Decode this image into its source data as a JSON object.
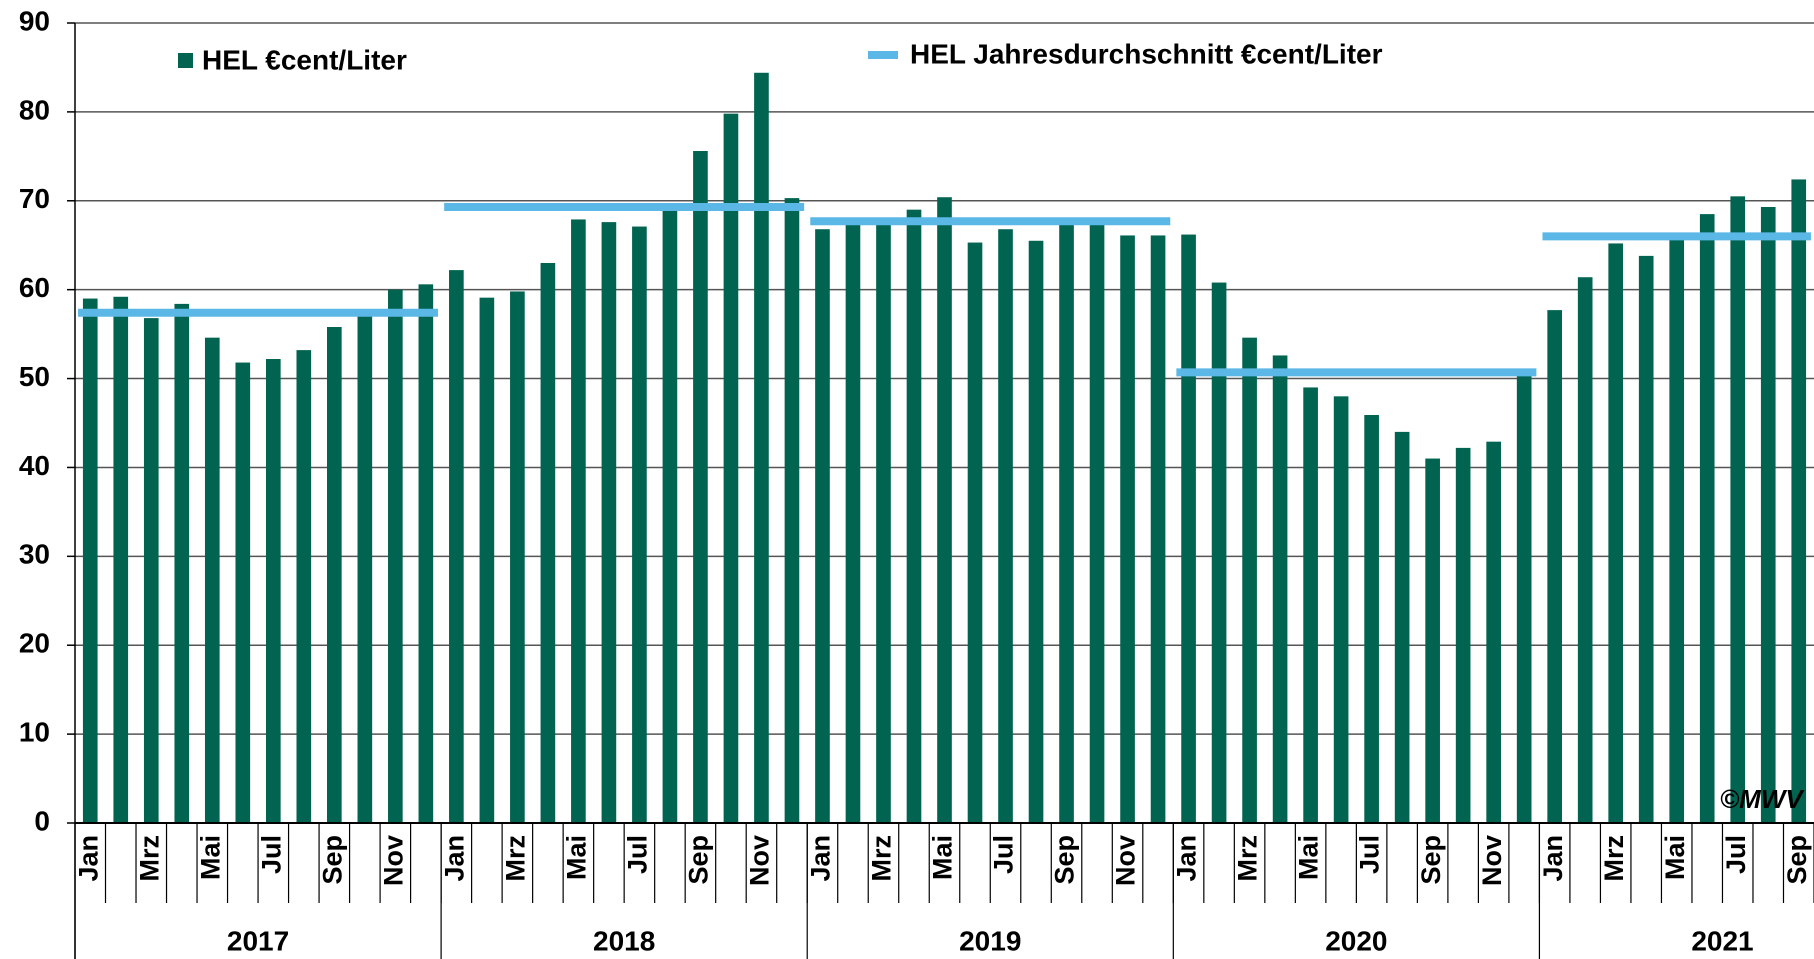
{
  "chart_data": {
    "type": "bar",
    "categories": [
      "Jan",
      null,
      "Mrz",
      null,
      "Mai",
      null,
      "Jul",
      null,
      "Sep",
      null,
      "Nov",
      null,
      "Jan",
      null,
      "Mrz",
      null,
      "Mai",
      null,
      "Jul",
      null,
      "Sep",
      null,
      "Nov",
      null,
      "Jan",
      null,
      "Mrz",
      null,
      "Mai",
      null,
      "Jul",
      null,
      "Sep",
      null,
      "Nov",
      null,
      "Jan",
      null,
      "Mrz",
      null,
      "Mai",
      null,
      "Jul",
      null,
      "Sep",
      null,
      "Nov",
      null,
      "Jan",
      null,
      "Mrz",
      null,
      "Mai",
      null,
      "Jul",
      null,
      "Sep"
    ],
    "years": [
      "2017",
      "2018",
      "2019",
      "2020",
      "2021"
    ],
    "series": [
      {
        "name": "HEL €cent/Liter",
        "color": "#006450",
        "values": [
          59,
          59.2,
          56.8,
          58.4,
          54.6,
          51.8,
          52.2,
          53.2,
          55.8,
          57.2,
          60,
          60.6,
          62.2,
          59.1,
          59.8,
          63,
          67.9,
          67.6,
          67.1,
          69,
          75.6,
          79.8,
          84.4,
          70.3,
          66.8,
          67.6,
          67.5,
          69,
          70.4,
          65.3,
          66.8,
          65.5,
          67.5,
          67.5,
          66.1,
          66.1,
          66.2,
          60.8,
          54.6,
          52.6,
          49,
          48,
          45.9,
          44,
          41,
          42.2,
          42.9,
          50.7,
          57.7,
          61.4,
          65.2,
          63.8,
          65.6,
          68.5,
          70.5,
          69.3,
          72.4
        ]
      }
    ],
    "averages": {
      "name": "HEL Jahresdurchschnitt €cent/Liter",
      "color": "#5bb8e6",
      "values": [
        57.4,
        69.3,
        67.7,
        50.7,
        66.0
      ]
    },
    "annotation": "©MWV",
    "ylim": [
      0,
      90
    ],
    "yticks": [
      0,
      10,
      20,
      30,
      40,
      50,
      60,
      70,
      80,
      90
    ],
    "grid": true
  }
}
